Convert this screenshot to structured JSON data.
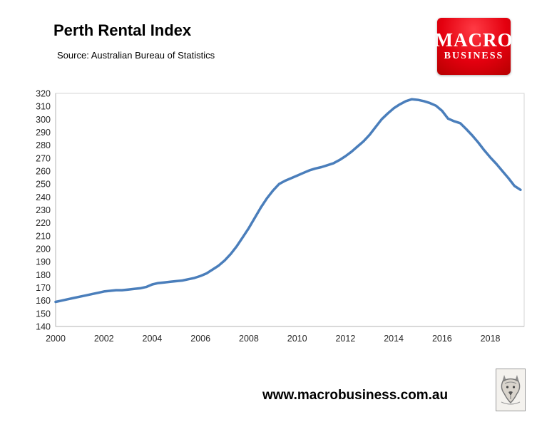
{
  "header": {
    "title": "Perth Rental Index",
    "subtitle": "Source: Australian Bureau of Statistics"
  },
  "logo": {
    "line1": "MACRO",
    "line2": "BUSINESS",
    "bg_color": "#e4000f",
    "text_color": "#ffffff"
  },
  "footer": {
    "url": "www.macrobusiness.com.au"
  },
  "chart_data": {
    "type": "line",
    "title": "Perth Rental Index",
    "subtitle": "Source: Australian Bureau of Statistics",
    "series_name": "Perth Rental Index",
    "line_color": "#4a7ebb",
    "line_width": 3.5,
    "grid": false,
    "legend_position": "none",
    "xlabel": "",
    "ylabel": "",
    "ylim": [
      140,
      320
    ],
    "ytick_step": 10,
    "xlim": [
      2000,
      2019.4
    ],
    "xticks": [
      2000,
      2002,
      2004,
      2006,
      2008,
      2010,
      2012,
      2014,
      2016,
      2018
    ],
    "x": [
      2000,
      2000.25,
      2000.5,
      2000.75,
      2001,
      2001.25,
      2001.5,
      2001.75,
      2002,
      2002.25,
      2002.5,
      2002.75,
      2003,
      2003.25,
      2003.5,
      2003.75,
      2004,
      2004.25,
      2004.5,
      2004.75,
      2005,
      2005.25,
      2005.5,
      2005.75,
      2006,
      2006.25,
      2006.5,
      2006.75,
      2007,
      2007.25,
      2007.5,
      2007.75,
      2008,
      2008.25,
      2008.5,
      2008.75,
      2009,
      2009.25,
      2009.5,
      2009.75,
      2010,
      2010.25,
      2010.5,
      2010.75,
      2011,
      2011.25,
      2011.5,
      2011.75,
      2012,
      2012.25,
      2012.5,
      2012.75,
      2013,
      2013.25,
      2013.5,
      2013.75,
      2014,
      2014.25,
      2014.5,
      2014.75,
      2015,
      2015.25,
      2015.5,
      2015.75,
      2016,
      2016.25,
      2016.5,
      2016.75,
      2017,
      2017.25,
      2017.5,
      2017.75,
      2018,
      2018.25,
      2018.5,
      2018.75,
      2019,
      2019.25
    ],
    "values": [
      159,
      160,
      161,
      162,
      163,
      164,
      165,
      166,
      167,
      167.5,
      168,
      168,
      168.5,
      169,
      169.5,
      170.5,
      172.5,
      173.5,
      174,
      174.5,
      175,
      175.5,
      176.5,
      177.5,
      179,
      181,
      184,
      187,
      191,
      196,
      202,
      209,
      216,
      224,
      232,
      239,
      245,
      250,
      252.5,
      254.5,
      256.5,
      258.5,
      260.5,
      262,
      263,
      264.5,
      266,
      268.5,
      271.5,
      275,
      279,
      283,
      288,
      294,
      300,
      304.5,
      308.5,
      311.5,
      314,
      315.5,
      315,
      314,
      312.5,
      310.5,
      306.5,
      300.5,
      298.5,
      297,
      292.5,
      287.5,
      282,
      276,
      270.5,
      265.5,
      260,
      254.5,
      248.5,
      245.5
    ]
  }
}
